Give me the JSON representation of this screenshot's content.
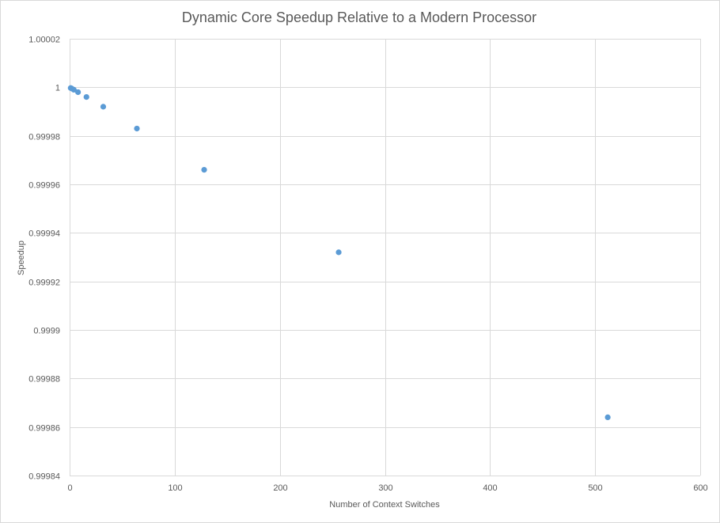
{
  "chart_data": {
    "type": "scatter",
    "title": "Dynamic Core Speedup Relative to a Modern Processor",
    "xlabel": "Number  of Context Switches",
    "ylabel": "Speedup",
    "xlim": [
      0,
      600
    ],
    "ylim": [
      0.99984,
      1.00002
    ],
    "x_ticks": [
      "0",
      "100",
      "200",
      "300",
      "400",
      "500",
      "600"
    ],
    "y_ticks": [
      "1.00002",
      "1",
      "0.99998",
      "0.99996",
      "0.99994",
      "0.99992",
      "0.9999",
      "0.99988",
      "0.99986",
      "0.99984"
    ],
    "grid": true,
    "legend": "none",
    "color": "#5b9bd5",
    "series": [
      {
        "x": [
          1,
          2,
          4,
          8,
          16,
          32,
          64,
          128,
          256,
          512
        ],
        "y": [
          0.9999997,
          0.9999995,
          0.999999,
          0.999998,
          0.999996,
          0.999992,
          0.999983,
          0.999966,
          0.999932,
          0.999864
        ]
      }
    ]
  }
}
